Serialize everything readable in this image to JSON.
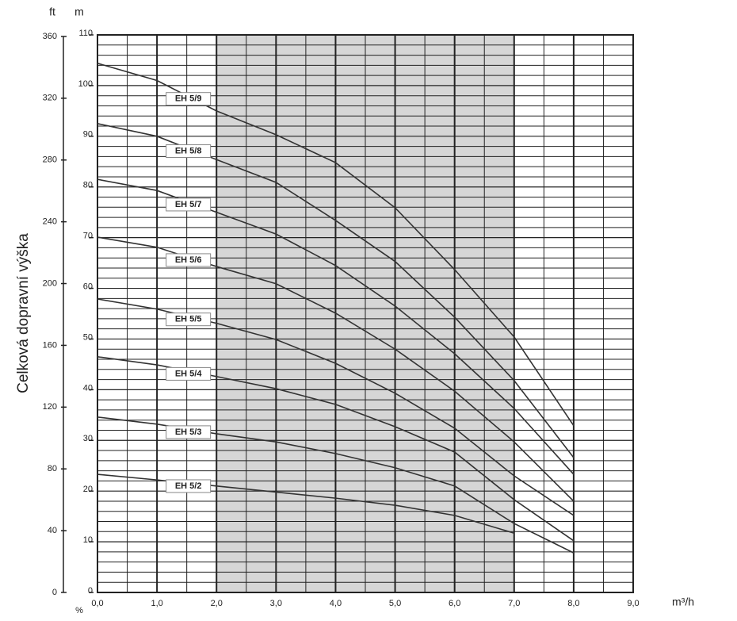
{
  "chart_data": {
    "type": "line",
    "x_label": "m³/h",
    "y_label": "Celková dopravní výška",
    "y_unit": "m",
    "y2_unit": "ft",
    "bottom_note": "%",
    "x": [
      0,
      1,
      2,
      3,
      4,
      5,
      6,
      7,
      8
    ],
    "xlim": [
      0,
      9
    ],
    "xticks": [
      {
        "value": 0,
        "label": "0,0"
      },
      {
        "value": 1,
        "label": "1,0"
      },
      {
        "value": 2,
        "label": "2,0"
      },
      {
        "value": 3,
        "label": "3,0"
      },
      {
        "value": 4,
        "label": "4,0"
      },
      {
        "value": 5,
        "label": "5,0"
      },
      {
        "value": 6,
        "label": "6,0"
      },
      {
        "value": 7,
        "label": "7,0"
      },
      {
        "value": 8,
        "label": "8,0"
      },
      {
        "value": 9,
        "label": "9,0"
      }
    ],
    "ylim": [
      0,
      110
    ],
    "yticks": [
      0,
      10,
      20,
      30,
      40,
      50,
      60,
      70,
      80,
      90,
      100,
      110
    ],
    "y2lim": [
      0,
      361
    ],
    "y2ticks": [
      0,
      40,
      80,
      120,
      160,
      200,
      240,
      280,
      320,
      360
    ],
    "shaded_xrange": [
      2,
      7
    ],
    "grid": true,
    "series": [
      {
        "name": "EH 5/9",
        "color": "#333333",
        "values": [
          104.4,
          101,
          95,
          90.3,
          84.8,
          75.9,
          63.7,
          50.4,
          32.9
        ]
      },
      {
        "name": "EH 5/8",
        "color": "#333333",
        "values": [
          92.5,
          90,
          85.4,
          80.9,
          73.4,
          65.3,
          54.3,
          41.8,
          26.6
        ]
      },
      {
        "name": "EH 5/7",
        "color": "#333333",
        "values": [
          81.5,
          79.3,
          75,
          70.7,
          64.5,
          56.5,
          47.1,
          36.3,
          23.3
        ]
      },
      {
        "name": "EH 5/6",
        "color": "#333333",
        "values": [
          70.1,
          68.1,
          64.3,
          60.9,
          55.1,
          48,
          39.7,
          29.7,
          18
        ]
      },
      {
        "name": "EH 5/5",
        "color": "#333333",
        "values": [
          57.9,
          55.9,
          53.1,
          49.9,
          45.2,
          39.3,
          32.4,
          23,
          15.2
        ]
      },
      {
        "name": "EH 5/4",
        "color": "#333333",
        "values": [
          46.5,
          44.9,
          42.6,
          40.2,
          37.1,
          32.7,
          27.7,
          18.3,
          10.2
        ]
      },
      {
        "name": "EH 5/3",
        "color": "#333333",
        "values": [
          34.6,
          33.2,
          31.3,
          29.7,
          27.4,
          24.6,
          21,
          13.6,
          7.8
        ]
      },
      {
        "name": "EH 5/2",
        "color": "#333333",
        "values": [
          23.3,
          22.2,
          21,
          19.8,
          18.6,
          17.2,
          15.2,
          11.7,
          null
        ]
      }
    ]
  }
}
